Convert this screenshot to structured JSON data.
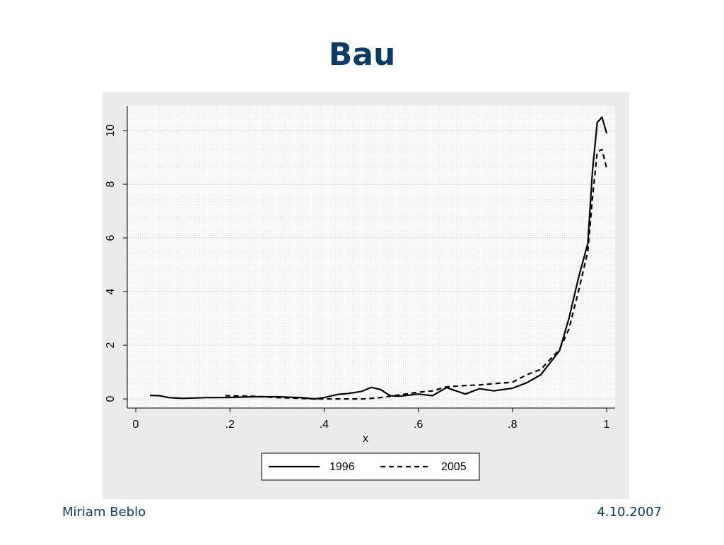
{
  "slide": {
    "title": "Bau",
    "author": "Miriam Beblo",
    "date": "4.10.2007"
  },
  "chart_data": {
    "type": "line",
    "x_label": "x",
    "x": [
      0.03,
      0.05,
      0.07,
      0.1,
      0.15,
      0.19,
      0.25,
      0.3,
      0.35,
      0.38,
      0.4,
      0.43,
      0.45,
      0.48,
      0.5,
      0.52,
      0.54,
      0.56,
      0.6,
      0.63,
      0.66,
      0.7,
      0.73,
      0.76,
      0.8,
      0.83,
      0.86,
      0.9,
      0.92,
      0.94,
      0.96,
      0.97,
      0.98,
      0.99,
      1.0
    ],
    "series": [
      {
        "name": "1996",
        "color": "#000000",
        "line_style": "solid",
        "values": [
          0.13,
          0.12,
          0.05,
          0.02,
          0.05,
          0.05,
          0.08,
          0.08,
          0.05,
          0.0,
          0.05,
          0.17,
          0.2,
          0.28,
          0.43,
          0.35,
          0.12,
          0.1,
          0.18,
          0.12,
          0.42,
          0.18,
          0.38,
          0.3,
          0.4,
          0.6,
          0.9,
          1.8,
          3.0,
          4.5,
          5.8,
          8.5,
          10.3,
          10.5,
          9.9
        ]
      },
      {
        "name": "2005",
        "color": "#000000",
        "line_style": "dashed",
        "values": [
          null,
          null,
          null,
          null,
          null,
          0.12,
          0.1,
          0.05,
          0.02,
          0.0,
          0.0,
          0.0,
          0.0,
          0.0,
          0.02,
          0.05,
          0.1,
          0.15,
          0.25,
          0.3,
          0.45,
          0.5,
          0.52,
          0.57,
          0.62,
          0.9,
          1.1,
          1.85,
          2.6,
          4.0,
          5.5,
          7.5,
          9.2,
          9.3,
          8.6
        ]
      }
    ],
    "xlim": [
      -0.018,
      1.018
    ],
    "ylim": [
      -0.34,
      10.92
    ],
    "xticks": [
      0,
      {
        "value": 0.2,
        "label": ".2"
      },
      {
        "value": 0.4,
        "label": ".4"
      },
      {
        "value": 0.6,
        "label": ".6"
      },
      {
        "value": 0.8,
        "label": ".8"
      },
      1
    ],
    "yticks": [
      0,
      2,
      4,
      6,
      8,
      10
    ],
    "grid": true,
    "legend": "bottom"
  }
}
